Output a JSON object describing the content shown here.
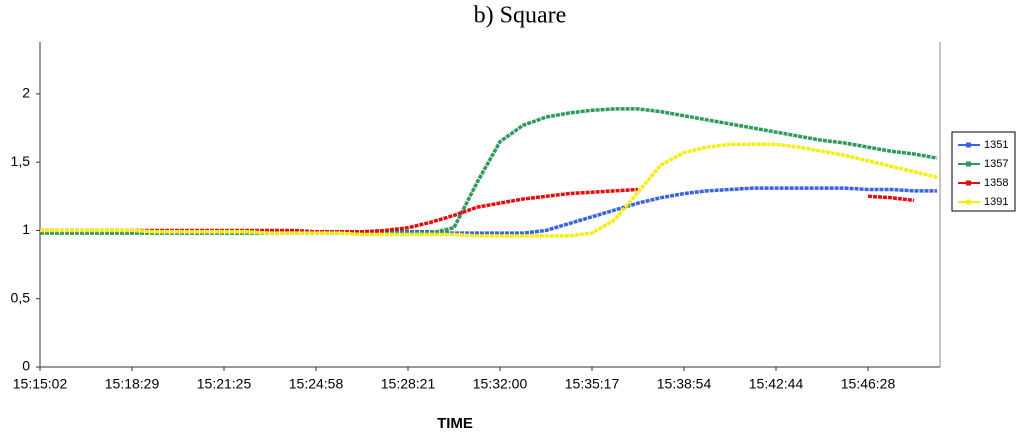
{
  "chart_data": {
    "type": "line",
    "title": "b) Square",
    "x_label": "TIME",
    "categories": [
      "15:15:02",
      null,
      null,
      null,
      "15:18:29",
      null,
      null,
      null,
      "15:21:25",
      null,
      null,
      null,
      "15:24:58",
      null,
      null,
      null,
      "15:28:21",
      null,
      null,
      null,
      "15:32:00",
      null,
      null,
      null,
      "15:35:17",
      null,
      null,
      null,
      "15:38:54",
      null,
      null,
      null,
      "15:42:44",
      null,
      null,
      null,
      "15:46:28",
      null,
      null,
      null
    ],
    "series": [
      {
        "name": "1351",
        "color": "#3a63e0",
        "values": [
          0.99,
          0.99,
          0.99,
          0.99,
          0.99,
          0.99,
          0.99,
          0.99,
          0.99,
          0.99,
          0.99,
          0.99,
          0.99,
          0.99,
          0.99,
          0.99,
          0.99,
          0.99,
          0.98,
          0.98,
          0.98,
          0.98,
          1.0,
          1.05,
          1.1,
          1.15,
          1.2,
          1.24,
          1.27,
          1.29,
          1.3,
          1.31,
          1.31,
          1.31,
          1.31,
          1.31,
          1.3,
          1.3,
          1.29,
          1.29
        ]
      },
      {
        "name": "1357",
        "color": "#2e9a5e",
        "values": [
          0.98,
          0.98,
          0.98,
          0.98,
          0.98,
          0.98,
          0.98,
          0.98,
          0.98,
          0.98,
          0.98,
          0.98,
          0.98,
          0.98,
          0.98,
          0.98,
          0.98,
          0.98,
          1.02,
          1.35,
          1.65,
          1.77,
          1.83,
          1.86,
          1.88,
          1.89,
          1.89,
          1.87,
          1.84,
          1.81,
          1.78,
          1.75,
          1.72,
          1.69,
          1.66,
          1.64,
          1.61,
          1.58,
          1.56,
          1.53
        ]
      },
      {
        "name": "1358",
        "color": "#e01010",
        "values": [
          1.0,
          1.0,
          1.0,
          1.0,
          1.0,
          1.0,
          1.0,
          1.0,
          1.0,
          1.0,
          1.0,
          1.0,
          0.99,
          0.99,
          0.99,
          1.0,
          1.02,
          1.06,
          1.11,
          1.17,
          1.2,
          1.23,
          1.25,
          1.27,
          1.28,
          1.29,
          1.3,
          null,
          null,
          null,
          null,
          null,
          null,
          null,
          null,
          null,
          1.25,
          1.24,
          1.22,
          null
        ]
      },
      {
        "name": "1391",
        "color": "#f2ee10",
        "values": [
          1.0,
          1.0,
          1.0,
          1.0,
          1.0,
          0.99,
          0.99,
          0.99,
          0.99,
          0.99,
          0.98,
          0.98,
          0.98,
          0.98,
          0.97,
          0.97,
          0.97,
          0.97,
          0.97,
          0.96,
          0.96,
          0.96,
          0.96,
          0.96,
          0.98,
          1.08,
          1.28,
          1.48,
          1.57,
          1.61,
          1.63,
          1.63,
          1.63,
          1.61,
          1.58,
          1.55,
          1.51,
          1.47,
          1.43,
          1.39
        ]
      }
    ],
    "ylim": [
      0,
      2.38
    ],
    "yticks": [
      0,
      {
        "value": 0.5,
        "label": "0,5"
      },
      1,
      {
        "value": 1.5,
        "label": "1,5"
      },
      2
    ]
  }
}
